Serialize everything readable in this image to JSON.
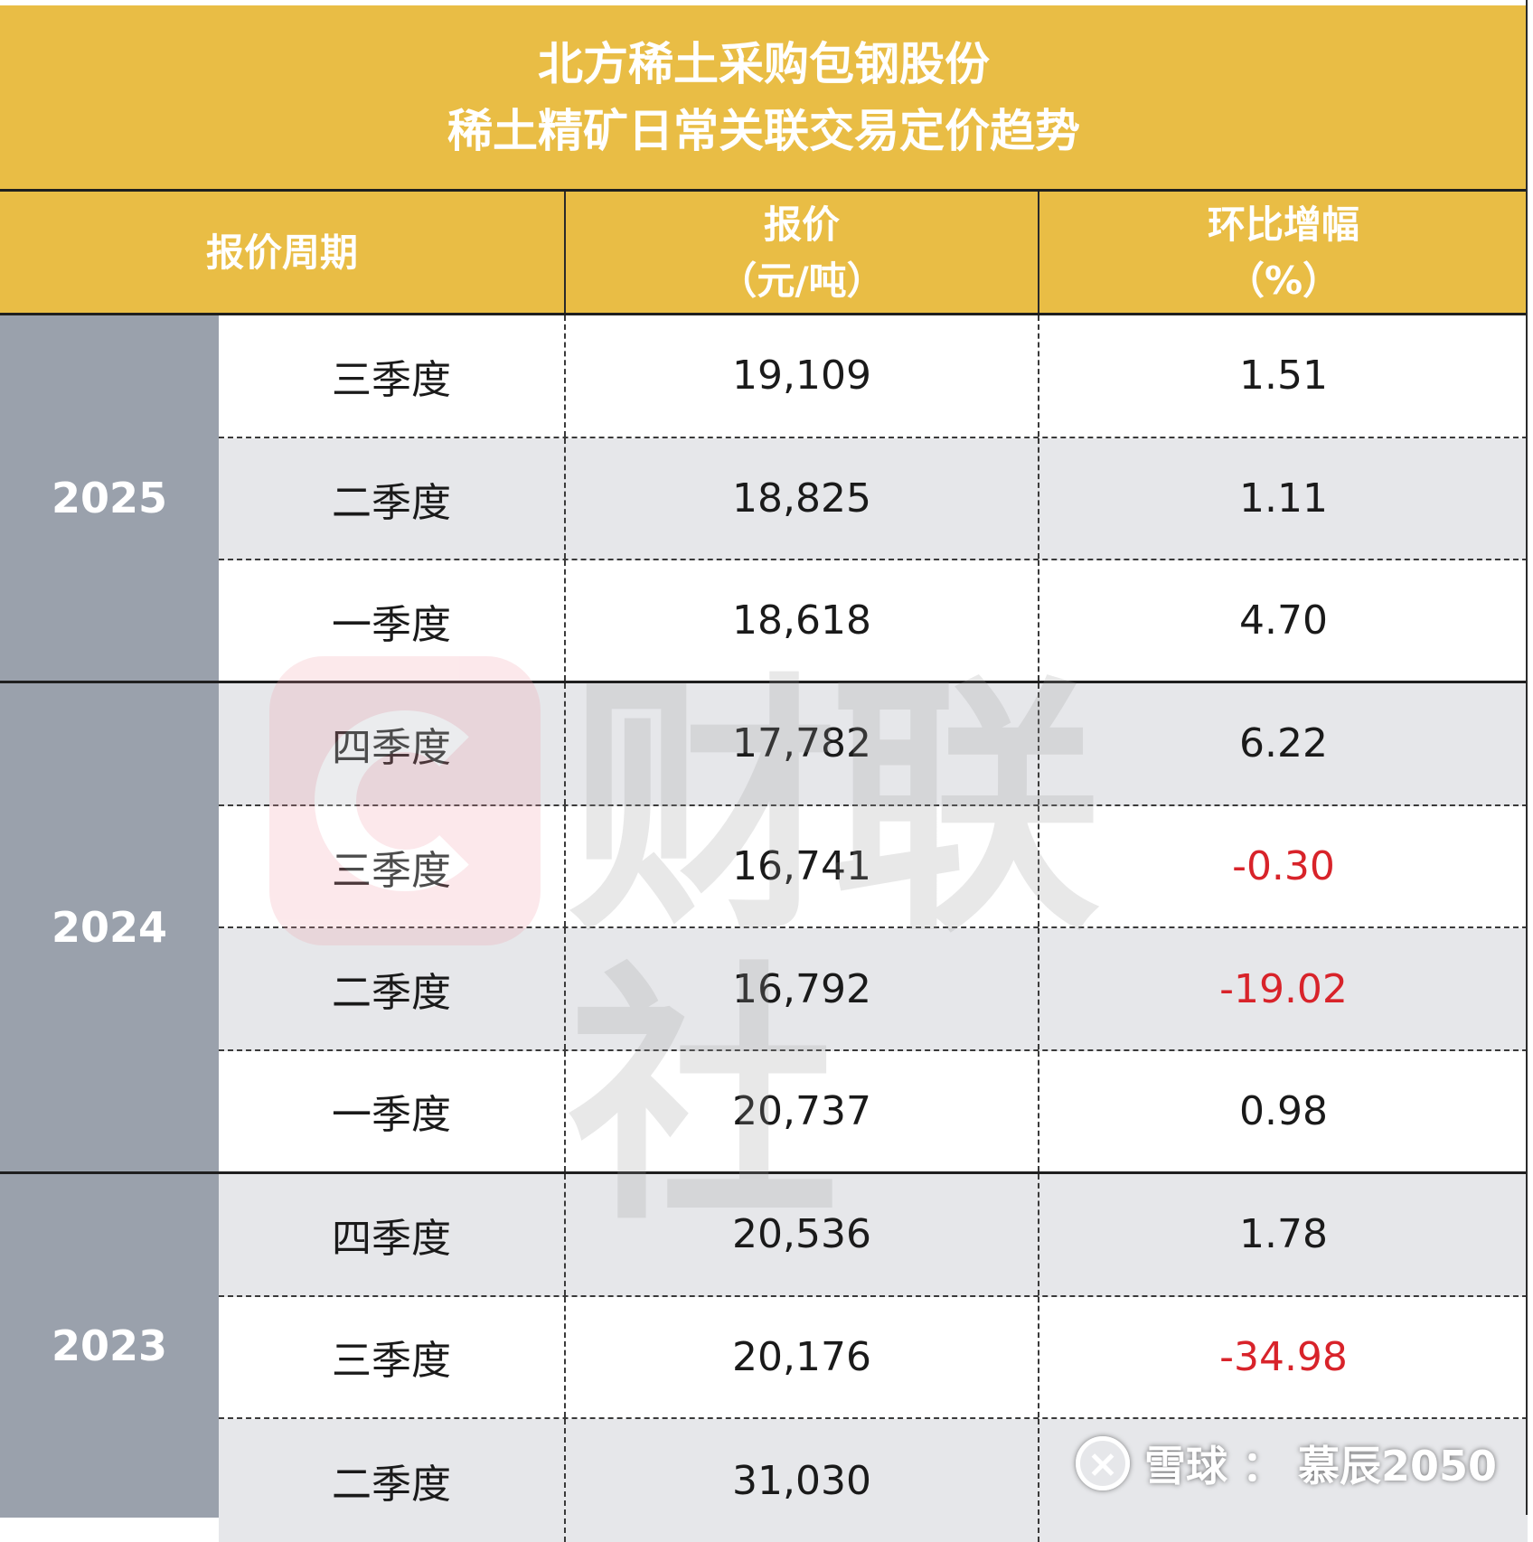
{
  "title": {
    "line1": "北方稀土采购包钢股份",
    "line2": "稀土精矿日常关联交易定价趋势"
  },
  "headers": {
    "period": "报价周期",
    "price": "报价",
    "price_unit": "（元/吨）",
    "change": "环比增幅",
    "change_unit": "（%）"
  },
  "years": [
    "2025",
    "2024",
    "2023"
  ],
  "rows": [
    {
      "quarter": "三季度",
      "price": "19,109",
      "change": "1.51"
    },
    {
      "quarter": "二季度",
      "price": "18,825",
      "change": "1.11"
    },
    {
      "quarter": "一季度",
      "price": "18,618",
      "change": "4.70"
    },
    {
      "quarter": "四季度",
      "price": "17,782",
      "change": "6.22"
    },
    {
      "quarter": "三季度",
      "price": "16,741",
      "change": "-0.30"
    },
    {
      "quarter": "二季度",
      "price": "16,792",
      "change": "-19.02"
    },
    {
      "quarter": "一季度",
      "price": "20,737",
      "change": "0.98"
    },
    {
      "quarter": "四季度",
      "price": "20,536",
      "change": "1.78"
    },
    {
      "quarter": "三季度",
      "price": "20,176",
      "change": "-34.98"
    },
    {
      "quarter": "二季度",
      "price": "31,030",
      "change": ""
    }
  ],
  "watermark": {
    "text": "财联社"
  },
  "credit": {
    "platform": "雪球",
    "separator": "：",
    "author": "慕辰2050",
    "icon": "snowball-logo-icon"
  },
  "colors": {
    "header_bg": "#e9bd45",
    "year_bg": "#9aa1ac",
    "alt_row": "#e6e7ea",
    "negative": "#d8232a"
  }
}
